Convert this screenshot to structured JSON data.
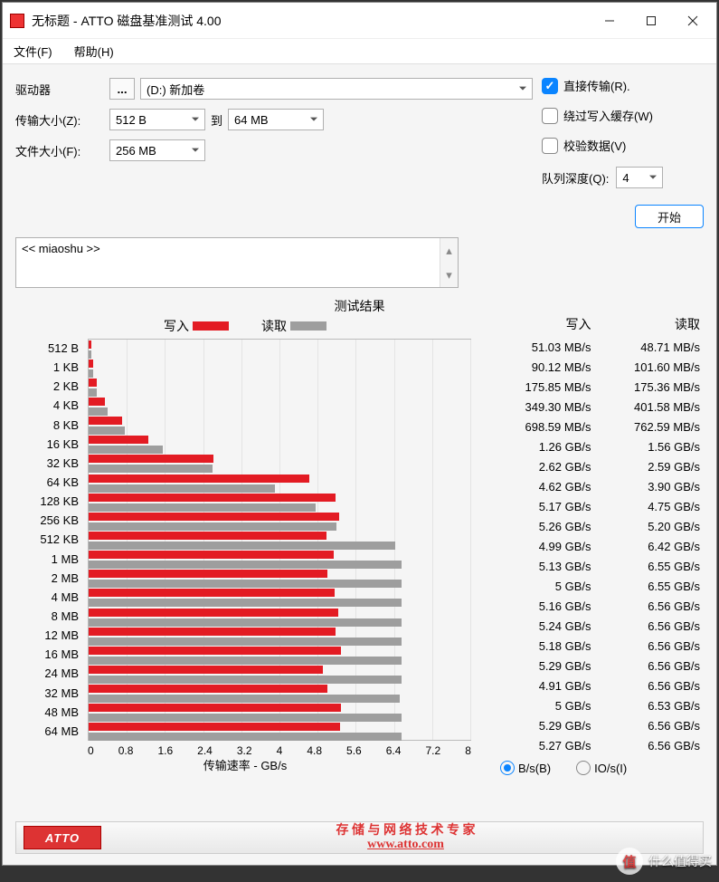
{
  "title": "无标题 - ATTO 磁盘基准测试 4.00",
  "menu": {
    "file": "文件(F)",
    "help": "帮助(H)"
  },
  "config": {
    "drive_label": "驱动器",
    "drive_value": "(D:) 新加卷",
    "transfer_size_label": "传输大小(Z):",
    "transfer_from": "512 B",
    "transfer_to_label": "到",
    "transfer_to": "64 MB",
    "file_size_label": "文件大小(F):",
    "file_size_value": "256 MB",
    "direct_label": "直接传输(R).",
    "bypass_label": "绕过写入缓存(W)",
    "verify_label": "校验数据(V)",
    "queue_label": "队列深度(Q):",
    "queue_value": "4",
    "start_label": "开始",
    "description": "<< miaoshu >>"
  },
  "results": {
    "caption": "测试结果",
    "write_label": "写入",
    "read_label": "读取",
    "xcaption": "传输速率 - GB/s",
    "xmax": 8,
    "xticks": [
      "0",
      "0.8",
      "1.6",
      "2.4",
      "3.2",
      "4",
      "4.8",
      "5.6",
      "6.4",
      "7.2",
      "8"
    ],
    "write_color": "#e31b23",
    "read_color": "#9e9e9e",
    "rows": [
      {
        "label": "512 B",
        "write": 0.05103,
        "read": 0.04871,
        "write_txt": "51.03 MB/s",
        "read_txt": "48.71 MB/s"
      },
      {
        "label": "1 KB",
        "write": 0.09012,
        "read": 0.1016,
        "write_txt": "90.12 MB/s",
        "read_txt": "101.60 MB/s"
      },
      {
        "label": "2 KB",
        "write": 0.17585,
        "read": 0.17536,
        "write_txt": "175.85 MB/s",
        "read_txt": "175.36 MB/s"
      },
      {
        "label": "4 KB",
        "write": 0.3493,
        "read": 0.40158,
        "write_txt": "349.30 MB/s",
        "read_txt": "401.58 MB/s"
      },
      {
        "label": "8 KB",
        "write": 0.69859,
        "read": 0.76259,
        "write_txt": "698.59 MB/s",
        "read_txt": "762.59 MB/s"
      },
      {
        "label": "16 KB",
        "write": 1.26,
        "read": 1.56,
        "write_txt": "1.26 GB/s",
        "read_txt": "1.56 GB/s"
      },
      {
        "label": "32 KB",
        "write": 2.62,
        "read": 2.59,
        "write_txt": "2.62 GB/s",
        "read_txt": "2.59 GB/s"
      },
      {
        "label": "64 KB",
        "write": 4.62,
        "read": 3.9,
        "write_txt": "4.62 GB/s",
        "read_txt": "3.90 GB/s"
      },
      {
        "label": "128 KB",
        "write": 5.17,
        "read": 4.75,
        "write_txt": "5.17 GB/s",
        "read_txt": "4.75 GB/s"
      },
      {
        "label": "256 KB",
        "write": 5.26,
        "read": 5.2,
        "write_txt": "5.26 GB/s",
        "read_txt": "5.20 GB/s"
      },
      {
        "label": "512 KB",
        "write": 4.99,
        "read": 6.42,
        "write_txt": "4.99 GB/s",
        "read_txt": "6.42 GB/s"
      },
      {
        "label": "1 MB",
        "write": 5.13,
        "read": 6.55,
        "write_txt": "5.13 GB/s",
        "read_txt": "6.55 GB/s"
      },
      {
        "label": "2 MB",
        "write": 5.0,
        "read": 6.55,
        "write_txt": "5 GB/s",
        "read_txt": "6.55 GB/s"
      },
      {
        "label": "4 MB",
        "write": 5.16,
        "read": 6.56,
        "write_txt": "5.16 GB/s",
        "read_txt": "6.56 GB/s"
      },
      {
        "label": "8 MB",
        "write": 5.24,
        "read": 6.56,
        "write_txt": "5.24 GB/s",
        "read_txt": "6.56 GB/s"
      },
      {
        "label": "12 MB",
        "write": 5.18,
        "read": 6.56,
        "write_txt": "5.18 GB/s",
        "read_txt": "6.56 GB/s"
      },
      {
        "label": "16 MB",
        "write": 5.29,
        "read": 6.56,
        "write_txt": "5.29 GB/s",
        "read_txt": "6.56 GB/s"
      },
      {
        "label": "24 MB",
        "write": 4.91,
        "read": 6.56,
        "write_txt": "4.91 GB/s",
        "read_txt": "6.56 GB/s"
      },
      {
        "label": "32 MB",
        "write": 5.0,
        "read": 6.53,
        "write_txt": "5 GB/s",
        "read_txt": "6.53 GB/s"
      },
      {
        "label": "48 MB",
        "write": 5.29,
        "read": 6.56,
        "write_txt": "5.29 GB/s",
        "read_txt": "6.56 GB/s"
      },
      {
        "label": "64 MB",
        "write": 5.27,
        "read": 6.56,
        "write_txt": "5.27 GB/s",
        "read_txt": "6.56 GB/s"
      }
    ],
    "radio_bs": "B/s(B)",
    "radio_ios": "IO/s(I)"
  },
  "footer": {
    "logo": "ATTO",
    "line1": "存 储 与 网 络 技 术 专 家",
    "line2": "www.atto.com"
  },
  "watermark": {
    "circle": "值",
    "text": "什么值得买"
  }
}
